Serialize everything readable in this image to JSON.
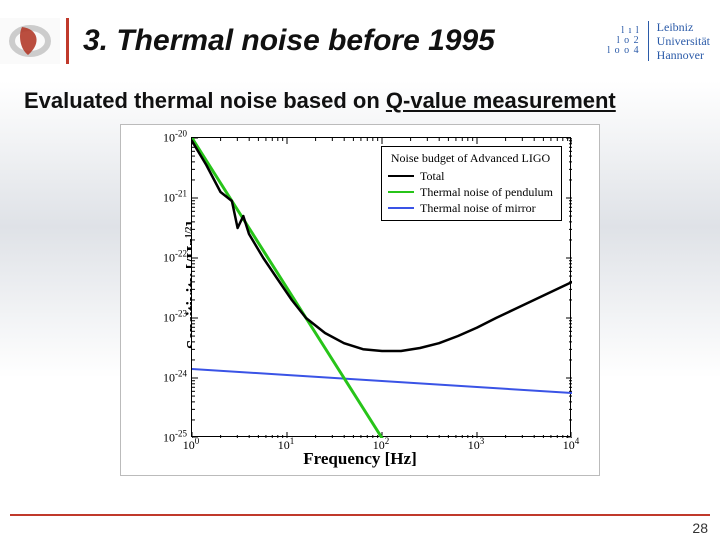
{
  "header": {
    "title": "3. Thermal noise before 1995",
    "uni_seal_rows": [
      "l ı l",
      "l o 2",
      "l o o 4"
    ],
    "uni_lines": [
      "Leibniz",
      "Universität",
      "Hannover"
    ],
    "title_rule_color": "#c0392b",
    "logo_glyph_color": "#b33b2a"
  },
  "subtitle": {
    "prefix": "Evaluated thermal noise based on ",
    "underlined": "Q-value measurement"
  },
  "chart": {
    "type": "line-loglog",
    "background_color": "#ffffff",
    "xlabel": "Frequency [Hz]",
    "ylabel_main": "Sensitivity [/Hz",
    "ylabel_exp": "1/2",
    "ylabel_tail": "]",
    "xlim": [
      1,
      10000
    ],
    "ylim_exp": [
      -25,
      -20
    ],
    "grid": false,
    "xtick_exponents": [
      0,
      1,
      2,
      3,
      4
    ],
    "ytick_exponents": [
      -25,
      -24,
      -23,
      -22,
      -21,
      -20
    ],
    "label_fontsize": 17,
    "tick_fontsize": 12,
    "legend": {
      "title": "Noise budget of Advanced LIGO",
      "items": [
        {
          "label": "Total",
          "color": "#000000"
        },
        {
          "label": "Thermal noise of pendulum",
          "color": "#27c419"
        },
        {
          "label": "Thermal noise of mirror",
          "color": "#3a53e6"
        }
      ],
      "position": "top-right",
      "border_color": "#000000",
      "line_width": 2
    },
    "series": {
      "pendulum": {
        "color": "#27c419",
        "width": 3,
        "points_logx_logy": [
          [
            0.0,
            -20.0
          ],
          [
            0.2,
            -20.5
          ],
          [
            0.4,
            -21.0
          ],
          [
            0.6,
            -21.5
          ],
          [
            0.8,
            -22.0
          ],
          [
            1.0,
            -22.5
          ],
          [
            1.2,
            -23.0
          ],
          [
            1.4,
            -23.5
          ],
          [
            1.6,
            -24.0
          ],
          [
            1.8,
            -24.5
          ],
          [
            2.0,
            -25.0
          ]
        ]
      },
      "mirror": {
        "color": "#3a53e6",
        "width": 2,
        "points_logx_logy": [
          [
            0.0,
            -23.85
          ],
          [
            1.0,
            -23.95
          ],
          [
            2.0,
            -24.05
          ],
          [
            3.0,
            -24.15
          ],
          [
            4.0,
            -24.25
          ]
        ]
      },
      "total": {
        "color": "#000000",
        "width": 2.5,
        "points_logx_logy": [
          [
            0.0,
            -20.05
          ],
          [
            0.15,
            -20.45
          ],
          [
            0.3,
            -20.9
          ],
          [
            0.42,
            -21.05
          ],
          [
            0.48,
            -21.5
          ],
          [
            0.54,
            -21.3
          ],
          [
            0.6,
            -21.6
          ],
          [
            0.75,
            -22.0
          ],
          [
            0.9,
            -22.35
          ],
          [
            1.05,
            -22.7
          ],
          [
            1.2,
            -23.0
          ],
          [
            1.4,
            -23.25
          ],
          [
            1.6,
            -23.42
          ],
          [
            1.8,
            -23.52
          ],
          [
            2.0,
            -23.55
          ],
          [
            2.2,
            -23.55
          ],
          [
            2.4,
            -23.5
          ],
          [
            2.6,
            -23.42
          ],
          [
            2.8,
            -23.3
          ],
          [
            3.0,
            -23.16
          ],
          [
            3.2,
            -23.0
          ],
          [
            3.4,
            -22.85
          ],
          [
            3.6,
            -22.7
          ],
          [
            3.8,
            -22.55
          ],
          [
            4.0,
            -22.4
          ]
        ]
      }
    }
  },
  "footer": {
    "page_number": "28",
    "rule_color": "#c0392b"
  }
}
